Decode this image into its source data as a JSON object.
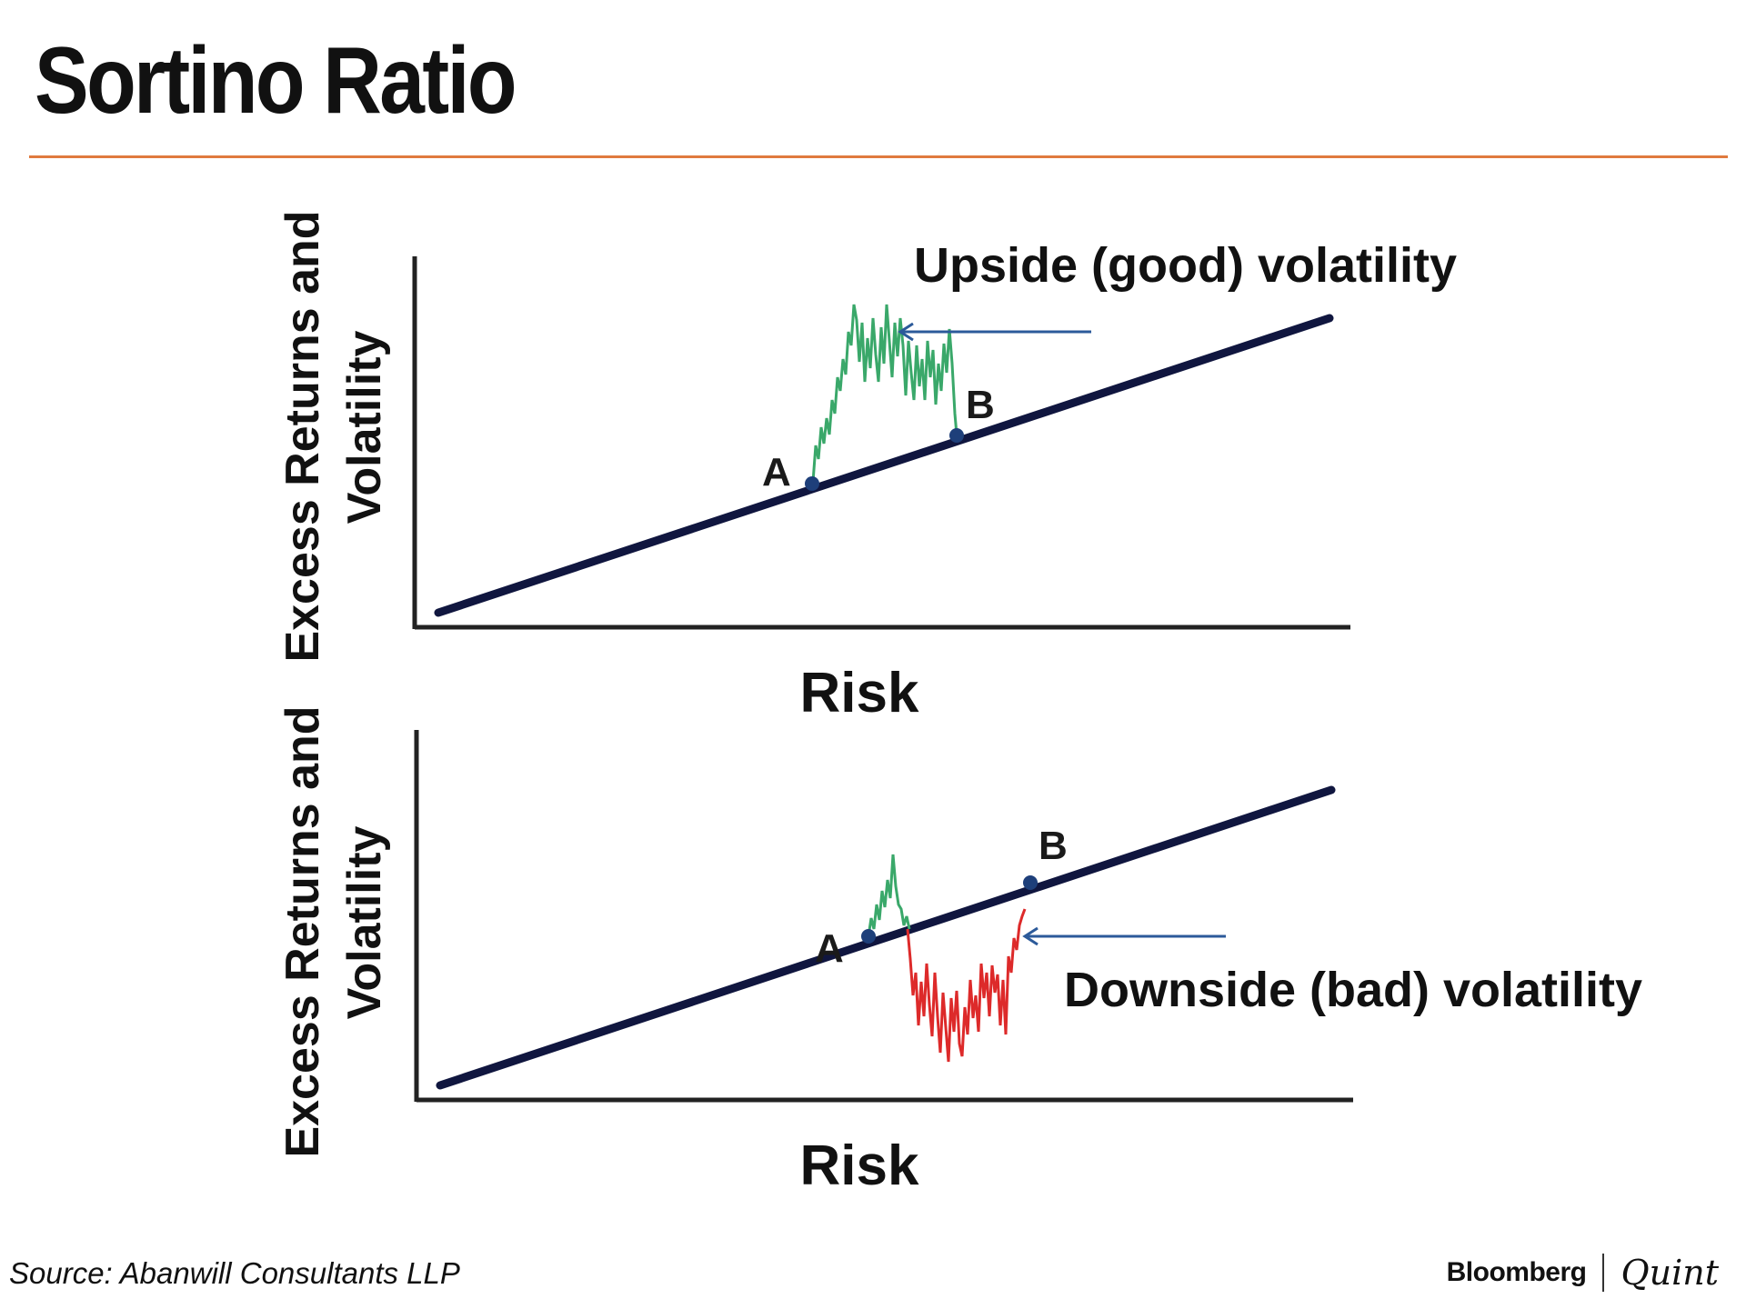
{
  "title": "Sortino Ratio",
  "top_chart": {
    "ylabel_line1": "Excess Returns and",
    "ylabel_line2": "Volatility",
    "xlabel": "Risk",
    "annotation": "Upside (good) volatility",
    "point_a": "A",
    "point_b": "B"
  },
  "bottom_chart": {
    "ylabel_line1": "Excess Returns and",
    "ylabel_line2": "Volatility",
    "xlabel": "Risk",
    "annotation": "Downside (bad) volatility",
    "point_a": "A",
    "point_b": "B"
  },
  "colors": {
    "accent_rule": "#e07a3e",
    "trend_line": "#10163f",
    "axis": "#222222",
    "good_volatility": "#3aa86a",
    "bad_volatility": "#dd2a2a",
    "arrow": "#2c5a9a",
    "point": "#1e3f7a"
  },
  "source": "Source: Abanwill Consultants LLP",
  "brand": {
    "primary": "Bloomberg",
    "secondary": "Quint"
  }
}
